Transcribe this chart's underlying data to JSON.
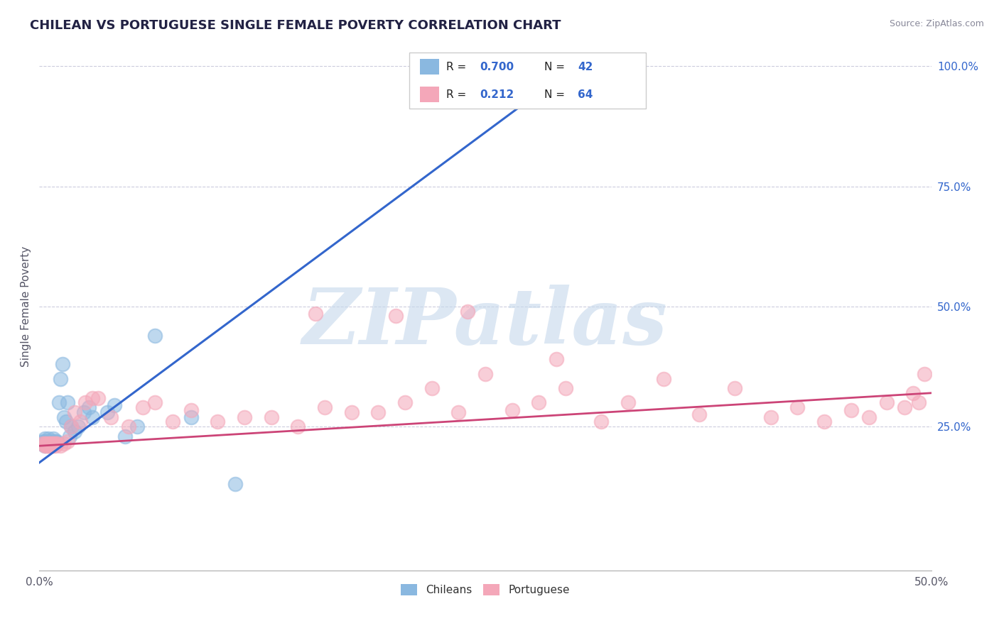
{
  "title": "CHILEAN VS PORTUGUESE SINGLE FEMALE POVERTY CORRELATION CHART",
  "source_text": "Source: ZipAtlas.com",
  "ylabel": "Single Female Poverty",
  "xlim": [
    0.0,
    0.5
  ],
  "ylim": [
    -0.05,
    1.05
  ],
  "ytick_vals": [
    0.25,
    0.5,
    0.75,
    1.0
  ],
  "ytick_labels": [
    "25.0%",
    "50.0%",
    "75.0%",
    "100.0%"
  ],
  "chilean_color": "#8ab8e0",
  "portuguese_color": "#f4a7b9",
  "trendline_blue": "#3366cc",
  "trendline_pink": "#cc4477",
  "legend_color": "#3366cc",
  "R_chilean": 0.7,
  "N_chilean": 42,
  "R_portuguese": 0.212,
  "N_portuguese": 64,
  "watermark": "ZIPatlas",
  "watermark_color": "#c5d8ec",
  "background_color": "#ffffff",
  "grid_color": "#ccccdd",
  "chilean_x": [
    0.001,
    0.002,
    0.002,
    0.003,
    0.003,
    0.003,
    0.004,
    0.004,
    0.005,
    0.005,
    0.005,
    0.006,
    0.006,
    0.007,
    0.007,
    0.008,
    0.008,
    0.009,
    0.009,
    0.01,
    0.01,
    0.011,
    0.012,
    0.013,
    0.014,
    0.015,
    0.016,
    0.017,
    0.018,
    0.02,
    0.022,
    0.025,
    0.028,
    0.03,
    0.038,
    0.042,
    0.048,
    0.055,
    0.065,
    0.085,
    0.11,
    0.27
  ],
  "chilean_y": [
    0.215,
    0.22,
    0.215,
    0.21,
    0.22,
    0.225,
    0.215,
    0.22,
    0.21,
    0.225,
    0.215,
    0.22,
    0.215,
    0.215,
    0.22,
    0.215,
    0.225,
    0.22,
    0.215,
    0.22,
    0.215,
    0.3,
    0.35,
    0.38,
    0.27,
    0.26,
    0.3,
    0.23,
    0.25,
    0.24,
    0.25,
    0.28,
    0.29,
    0.27,
    0.28,
    0.295,
    0.23,
    0.25,
    0.44,
    0.27,
    0.13,
    1.0
  ],
  "portuguese_x": [
    0.002,
    0.003,
    0.003,
    0.004,
    0.004,
    0.005,
    0.005,
    0.006,
    0.006,
    0.007,
    0.007,
    0.008,
    0.008,
    0.009,
    0.009,
    0.01,
    0.012,
    0.014,
    0.016,
    0.018,
    0.02,
    0.023,
    0.026,
    0.03,
    0.033,
    0.04,
    0.05,
    0.058,
    0.065,
    0.075,
    0.085,
    0.1,
    0.115,
    0.13,
    0.145,
    0.16,
    0.175,
    0.19,
    0.205,
    0.22,
    0.235,
    0.25,
    0.265,
    0.28,
    0.295,
    0.315,
    0.33,
    0.35,
    0.37,
    0.39,
    0.41,
    0.425,
    0.44,
    0.455,
    0.465,
    0.475,
    0.485,
    0.49,
    0.493,
    0.496,
    0.155,
    0.2,
    0.24,
    0.29
  ],
  "portuguese_y": [
    0.215,
    0.215,
    0.21,
    0.215,
    0.21,
    0.215,
    0.21,
    0.215,
    0.21,
    0.215,
    0.21,
    0.215,
    0.21,
    0.215,
    0.21,
    0.215,
    0.21,
    0.215,
    0.22,
    0.25,
    0.28,
    0.26,
    0.3,
    0.31,
    0.31,
    0.27,
    0.25,
    0.29,
    0.3,
    0.26,
    0.285,
    0.26,
    0.27,
    0.27,
    0.25,
    0.29,
    0.28,
    0.28,
    0.3,
    0.33,
    0.28,
    0.36,
    0.285,
    0.3,
    0.33,
    0.26,
    0.3,
    0.35,
    0.275,
    0.33,
    0.27,
    0.29,
    0.26,
    0.285,
    0.27,
    0.3,
    0.29,
    0.32,
    0.3,
    0.36,
    0.485,
    0.48,
    0.49,
    0.39
  ],
  "blue_trendline_x0": 0.0,
  "blue_trendline_y0": 0.175,
  "blue_trendline_x1": 0.3,
  "blue_trendline_y1": 1.0,
  "pink_trendline_x0": 0.0,
  "pink_trendline_y0": 0.21,
  "pink_trendline_x1": 0.5,
  "pink_trendline_y1": 0.32
}
